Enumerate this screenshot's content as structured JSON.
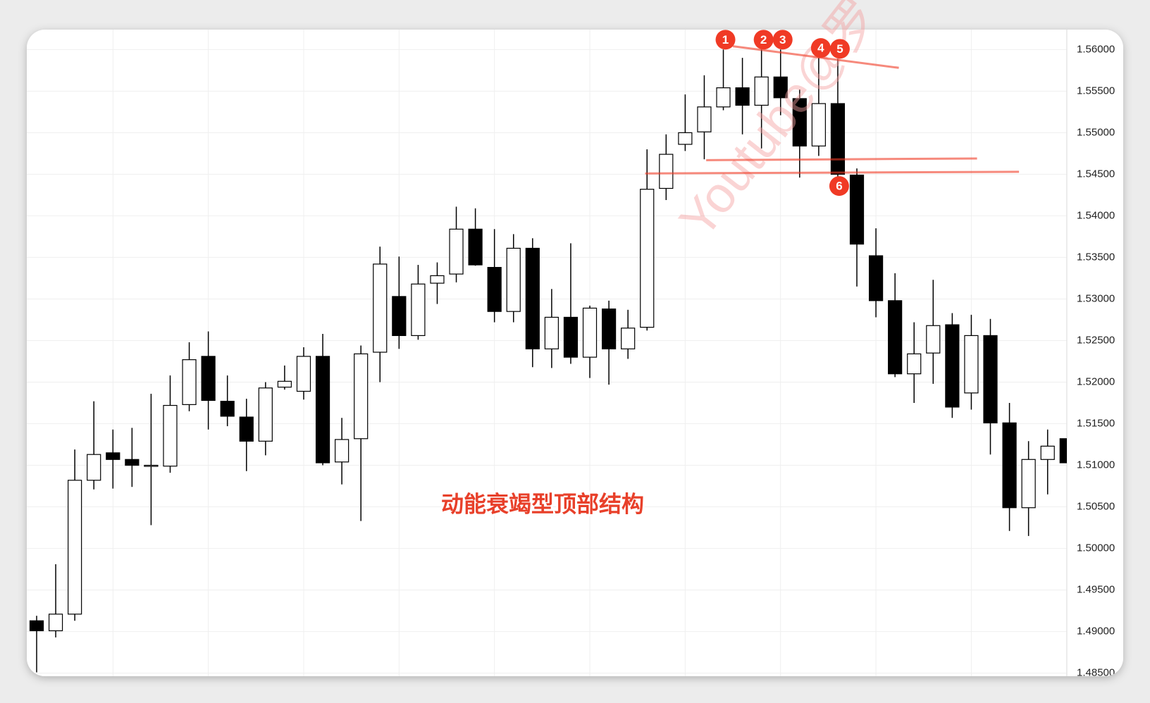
{
  "chart_data": {
    "type": "candlestick",
    "title": "动能衰竭型顶部结构",
    "watermark": "Youtube@罗",
    "open": [
      1.4913,
      1.4901,
      1.4921,
      1.5082,
      1.5115,
      1.5107,
      1.5099,
      1.5099,
      1.5173,
      1.5231,
      1.5177,
      1.5158,
      1.5129,
      1.5194,
      1.5189,
      1.5231,
      1.5104,
      1.5132,
      1.5236,
      1.5303,
      1.5256,
      1.5319,
      1.533,
      1.5384,
      1.5338,
      1.5285,
      1.5361,
      1.524,
      1.5278,
      1.523,
      1.5288,
      1.524,
      1.5266,
      1.5433,
      1.5486,
      1.5501,
      1.5531,
      1.5554,
      1.5533,
      1.5567,
      1.5541,
      1.5484,
      1.5535,
      1.5449,
      1.5352,
      1.5298,
      1.521,
      1.5235,
      1.5269,
      1.5187,
      1.5256,
      1.5151,
      1.5049,
      1.5107,
      1.5132
    ],
    "high": [
      1.4919,
      1.4981,
      1.5119,
      1.5177,
      1.5143,
      1.5145,
      1.5186,
      1.5208,
      1.5248,
      1.5261,
      1.5208,
      1.518,
      1.52,
      1.522,
      1.5242,
      1.5258,
      1.5157,
      1.5244,
      1.5363,
      1.5351,
      1.5341,
      1.5344,
      1.5411,
      1.5409,
      1.5384,
      1.5378,
      1.5373,
      1.5312,
      1.5367,
      1.5292,
      1.5298,
      1.5287,
      1.548,
      1.5498,
      1.5546,
      1.5569,
      1.56,
      1.559,
      1.56,
      1.56,
      1.5552,
      1.559,
      1.5589,
      1.5457,
      1.5385,
      1.5331,
      1.5272,
      1.5323,
      1.5283,
      1.5281,
      1.5276,
      1.5175,
      1.5129,
      1.5143,
      1.5132
    ],
    "low": [
      1.4851,
      1.4893,
      1.4913,
      1.5071,
      1.5072,
      1.5074,
      1.5028,
      1.5091,
      1.5165,
      1.5143,
      1.5147,
      1.5093,
      1.5112,
      1.5191,
      1.5179,
      1.51,
      1.5077,
      1.5033,
      1.52,
      1.524,
      1.5251,
      1.5294,
      1.532,
      1.534,
      1.5272,
      1.5272,
      1.5218,
      1.5217,
      1.5222,
      1.5205,
      1.5197,
      1.5228,
      1.5262,
      1.5419,
      1.5478,
      1.5468,
      1.5527,
      1.5498,
      1.5481,
      1.5521,
      1.5446,
      1.5472,
      1.5446,
      1.5315,
      1.5278,
      1.5206,
      1.5175,
      1.5198,
      1.5157,
      1.5167,
      1.5113,
      1.5021,
      1.5015,
      1.5065,
      1.5103
    ],
    "close": [
      1.4901,
      1.4921,
      1.5082,
      1.5113,
      1.5107,
      1.51,
      1.51,
      1.5172,
      1.5227,
      1.5178,
      1.5159,
      1.5129,
      1.5193,
      1.5201,
      1.5231,
      1.5103,
      1.5131,
      1.5234,
      1.5342,
      1.5256,
      1.5318,
      1.5328,
      1.5384,
      1.5341,
      1.5285,
      1.5361,
      1.524,
      1.5278,
      1.523,
      1.5289,
      1.524,
      1.5265,
      1.5432,
      1.5474,
      1.55,
      1.5531,
      1.5554,
      1.5533,
      1.5567,
      1.5542,
      1.5484,
      1.5535,
      1.545,
      1.5366,
      1.5298,
      1.521,
      1.5234,
      1.5268,
      1.517,
      1.5256,
      1.5151,
      1.5049,
      1.5107,
      1.5123,
      1.5103
    ],
    "up_color": "#ffffff",
    "down_color": "#000000",
    "ylim": [
      1.4848,
      1.5624
    ],
    "yticks": [
      {
        "value": 1.56,
        "label": "1.56000"
      },
      {
        "value": 1.555,
        "label": "1.55500"
      },
      {
        "value": 1.55,
        "label": "1.55000"
      },
      {
        "value": 1.545,
        "label": "1.54500"
      },
      {
        "value": 1.54,
        "label": "1.54000"
      },
      {
        "value": 1.535,
        "label": "1.53500"
      },
      {
        "value": 1.53,
        "label": "1.53000"
      },
      {
        "value": 1.525,
        "label": "1.52500"
      },
      {
        "value": 1.52,
        "label": "1.52000"
      },
      {
        "value": 1.515,
        "label": "1.51500"
      },
      {
        "value": 1.51,
        "label": "1.51000"
      },
      {
        "value": 1.505,
        "label": "1.50500"
      },
      {
        "value": 1.5,
        "label": "1.50000"
      },
      {
        "value": 1.495,
        "label": "1.49500"
      },
      {
        "value": 1.49,
        "label": "1.49000"
      },
      {
        "value": 1.485,
        "label": "1.48500"
      }
    ],
    "grid": true,
    "annotation_color": "#f03a25",
    "lines": [
      {
        "x": [
          36.5,
          45.2
        ],
        "y": [
          1.5604,
          1.5578
        ]
      },
      {
        "x": [
          35.1,
          49.3
        ],
        "y": [
          1.5467,
          1.5469
        ]
      },
      {
        "x": [
          31.9,
          51.5
        ],
        "y": [
          1.5451,
          1.5453
        ]
      }
    ],
    "markers": [
      {
        "label": "1",
        "candle": 36,
        "at": "high"
      },
      {
        "label": "2",
        "candle": 38,
        "at": "high"
      },
      {
        "label": "3",
        "candle": 39,
        "at": "high"
      },
      {
        "label": "4",
        "candle": 41,
        "at": "high"
      },
      {
        "label": "5",
        "candle": 42,
        "at": "high"
      },
      {
        "label": "6",
        "candle": 42,
        "at": "low"
      }
    ]
  }
}
